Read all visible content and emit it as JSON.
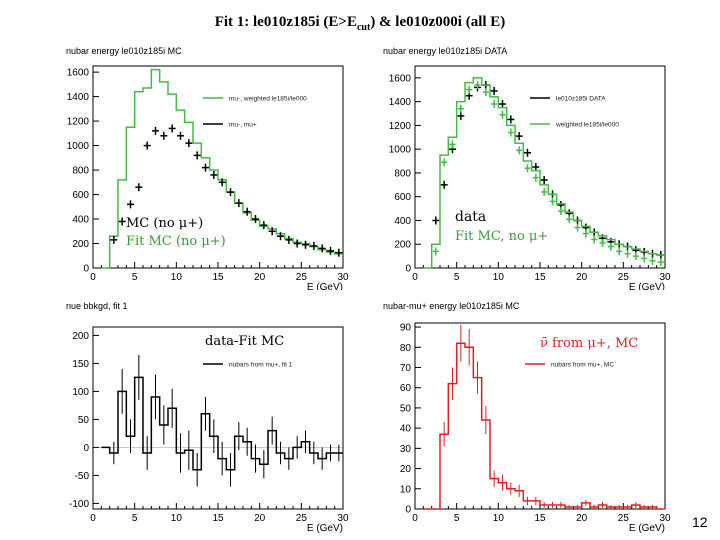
{
  "slide": {
    "title_main": "Fit 1: le010z185i (E>E",
    "title_sub": "cut",
    "title_rest": ") & le010z000i (all E)",
    "page_number": "12"
  },
  "annotations": {
    "p1_line1": "MC (no μ+)",
    "p1_line2": "Fit MC (no μ+)",
    "p2_line1": "data",
    "p2_line2": "Fit MC, no μ+",
    "p3_line1": "data-Fit MC",
    "p4_line1": "ν̄ from μ+, MC"
  },
  "colors": {
    "green": "#44bb44",
    "red": "#dd2222",
    "black": "#000000"
  },
  "chart_data": [
    {
      "type": "line",
      "title": "nubar energy le010z185i MC",
      "xlabel": "E (GeV)",
      "ylabel": "",
      "xlim": [
        0,
        30
      ],
      "ylim": [
        0,
        1650
      ],
      "xticks": [
        0,
        5,
        10,
        15,
        20,
        25,
        30
      ],
      "yticks": [
        0,
        200,
        400,
        600,
        800,
        1000,
        1200,
        1400,
        1600
      ],
      "legend": [
        "mu-, weighted le185i/le000",
        "mu-, mu+"
      ],
      "series": [
        {
          "name": "mu-, weighted le185i/le000",
          "style": "hist",
          "color": "green",
          "edges": [
            1,
            2,
            3,
            4,
            5,
            6,
            7,
            8,
            9,
            10,
            11,
            12,
            13,
            14,
            15,
            16,
            17,
            18,
            19,
            20,
            21,
            22,
            23,
            24,
            25,
            26,
            27,
            28,
            29,
            30
          ],
          "values": [
            0,
            260,
            720,
            1150,
            1440,
            1470,
            1620,
            1520,
            1420,
            1290,
            1190,
            1020,
            900,
            800,
            720,
            620,
            530,
            450,
            390,
            340,
            320,
            280,
            240,
            210,
            200,
            175,
            150,
            130,
            115
          ]
        },
        {
          "name": "mu-, mu+",
          "style": "cross",
          "color": "black",
          "x": [
            2.5,
            3.5,
            4.5,
            5.5,
            6.5,
            7.5,
            8.5,
            9.5,
            10.5,
            11.5,
            12.5,
            13.5,
            14.5,
            15.5,
            16.5,
            17.5,
            18.5,
            19.5,
            20.5,
            21.5,
            22.5,
            23.5,
            24.5,
            25.5,
            26.5,
            27.5,
            28.5,
            29.5
          ],
          "y": [
            230,
            380,
            520,
            660,
            1000,
            1120,
            1080,
            1140,
            1080,
            1020,
            920,
            820,
            760,
            700,
            620,
            530,
            460,
            400,
            350,
            300,
            260,
            230,
            200,
            190,
            180,
            160,
            140,
            125
          ]
        }
      ]
    },
    {
      "type": "line",
      "title": "nubar energy le010z185i DATA",
      "xlabel": "E (GeV)",
      "ylabel": "",
      "xlim": [
        0,
        30
      ],
      "ylim": [
        0,
        1700
      ],
      "xticks": [
        0,
        5,
        10,
        15,
        20,
        25,
        30
      ],
      "yticks": [
        0,
        200,
        400,
        600,
        800,
        1000,
        1200,
        1400,
        1600
      ],
      "legend": [
        "le010z185i DATA",
        "weighted le185i/le000"
      ],
      "series": [
        {
          "name": "le010z185i DATA",
          "style": "cross",
          "color": "black",
          "x": [
            2.5,
            3.5,
            4.5,
            5.5,
            6.5,
            7.5,
            8.5,
            9.5,
            10.5,
            11.5,
            12.5,
            13.5,
            14.5,
            15.5,
            16.5,
            17.5,
            18.5,
            19.5,
            20.5,
            21.5,
            22.5,
            23.5,
            24.5,
            25.5,
            26.5,
            27.5,
            28.5,
            29.5
          ],
          "y": [
            400,
            700,
            1000,
            1280,
            1450,
            1520,
            1540,
            1490,
            1380,
            1250,
            1110,
            970,
            850,
            740,
            620,
            530,
            460,
            400,
            340,
            300,
            250,
            220,
            200,
            180,
            150,
            135,
            120,
            110
          ]
        },
        {
          "name": "weighted le185i/le000",
          "style": "hist+cross",
          "color": "green",
          "edges": [
            1,
            2,
            3,
            4,
            5,
            6,
            7,
            8,
            9,
            10,
            11,
            12,
            13,
            14,
            15,
            16,
            17,
            18,
            19,
            20,
            21,
            22,
            23,
            24,
            25,
            26,
            27,
            28,
            29,
            30
          ],
          "values": [
            0,
            200,
            950,
            1100,
            1400,
            1560,
            1600,
            1540,
            1440,
            1350,
            1200,
            1050,
            900,
            820,
            700,
            620,
            540,
            470,
            400,
            350,
            300,
            270,
            240,
            200,
            180,
            160,
            140,
            120,
            110
          ]
        }
      ]
    },
    {
      "type": "line",
      "title": "nue bbkgd, fit 1",
      "xlabel": "E (GeV)",
      "ylabel": "",
      "xlim": [
        0,
        30
      ],
      "ylim": [
        -110,
        215
      ],
      "xticks": [
        0,
        5,
        10,
        15,
        20,
        25,
        30
      ],
      "yticks": [
        -100,
        -50,
        0,
        50,
        100,
        150,
        200
      ],
      "legend": [
        "nubars from mu+, fit 1"
      ],
      "series": [
        {
          "name": "nubars from mu+, fit 1",
          "style": "hist+err",
          "color": "black",
          "edges": [
            1,
            2,
            3,
            4,
            5,
            6,
            7,
            8,
            9,
            10,
            11,
            12,
            13,
            14,
            15,
            16,
            17,
            18,
            19,
            20,
            21,
            22,
            23,
            24,
            25,
            26,
            27,
            28,
            29,
            30
          ],
          "values": [
            0,
            -10,
            100,
            20,
            125,
            -10,
            90,
            40,
            70,
            -10,
            -5,
            -40,
            60,
            20,
            -20,
            -40,
            20,
            10,
            -20,
            -30,
            30,
            -10,
            -20,
            0,
            10,
            -10,
            -20,
            -10,
            -10
          ],
          "errors": [
            0,
            20,
            40,
            30,
            40,
            30,
            40,
            35,
            35,
            35,
            35,
            30,
            30,
            30,
            30,
            30,
            25,
            25,
            25,
            25,
            25,
            20,
            20,
            20,
            20,
            20,
            20,
            15,
            15
          ]
        }
      ]
    },
    {
      "type": "line",
      "title": "nubar-mu+ energy le010z185i MC",
      "xlabel": "E (GeV)",
      "ylabel": "",
      "xlim": [
        0,
        30
      ],
      "ylim": [
        0,
        92
      ],
      "xticks": [
        0,
        5,
        10,
        15,
        20,
        25,
        30
      ],
      "yticks": [
        0,
        10,
        20,
        30,
        40,
        50,
        60,
        70,
        80,
        90
      ],
      "legend": [
        "nubars from mu+, MC"
      ],
      "series": [
        {
          "name": "nubars from mu+, MC",
          "style": "hist+err",
          "color": "red",
          "edges": [
            1,
            2,
            3,
            4,
            5,
            6,
            7,
            8,
            9,
            10,
            11,
            12,
            13,
            14,
            15,
            16,
            17,
            18,
            19,
            20,
            21,
            22,
            23,
            24,
            25,
            26,
            27,
            28,
            29,
            30
          ],
          "values": [
            0,
            0,
            37,
            62,
            82,
            80,
            65,
            44,
            15,
            13,
            10,
            9,
            4,
            4,
            2,
            2,
            2,
            1,
            1,
            3,
            1,
            2,
            1,
            1,
            1,
            2,
            1,
            1,
            0
          ],
          "errors": [
            0,
            0,
            6,
            8,
            9,
            9,
            8,
            7,
            4,
            4,
            3,
            3,
            2,
            2,
            1.5,
            1.5,
            1.5,
            1,
            1,
            1.5,
            1,
            1.5,
            1,
            1,
            1,
            1.5,
            1,
            1,
            0
          ]
        }
      ]
    }
  ]
}
